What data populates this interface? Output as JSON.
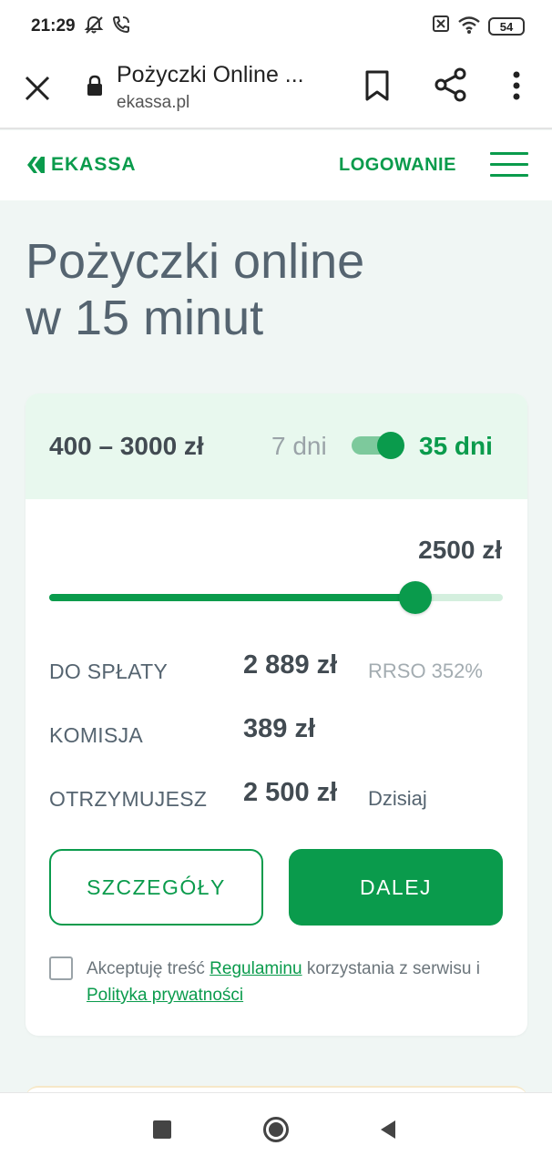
{
  "status_bar": {
    "time": "21:29",
    "battery": "54"
  },
  "browser": {
    "title": "Pożyczki Online ...",
    "url": "ekassa.pl"
  },
  "site_header": {
    "logo_text": "EKASSA",
    "login_label": "LOGOWANIE"
  },
  "hero": {
    "line1": "Pożyczki online",
    "line2": "w 15 minut"
  },
  "calculator": {
    "range": "400 – 3000 zł",
    "term_short": "7 dni",
    "term_long": "35 dni",
    "amount": "2500 zł",
    "slider_fraction": 0.808,
    "rows": [
      {
        "label": "DO SPŁATY",
        "value": "2 889 zł",
        "note": "RRSO 352%"
      },
      {
        "label": "KOMISJA",
        "value": "389 zł",
        "note": ""
      },
      {
        "label": "OTRZYMUJESZ",
        "value": "2 500 zł",
        "note": "Dzisiaj"
      }
    ],
    "details_button": "SZCZEGÓŁY",
    "next_button": "DALEJ"
  },
  "terms": {
    "text_1": "Akceptuję treść ",
    "link_1": "Regulaminu",
    "text_2": " korzystania z serwisu i ",
    "link_2": "Polityka prywatności"
  },
  "colors": {
    "brand_green": "#0a9b4c",
    "page_background": "#f0f6f4",
    "card_header": "#e8f8ee"
  }
}
